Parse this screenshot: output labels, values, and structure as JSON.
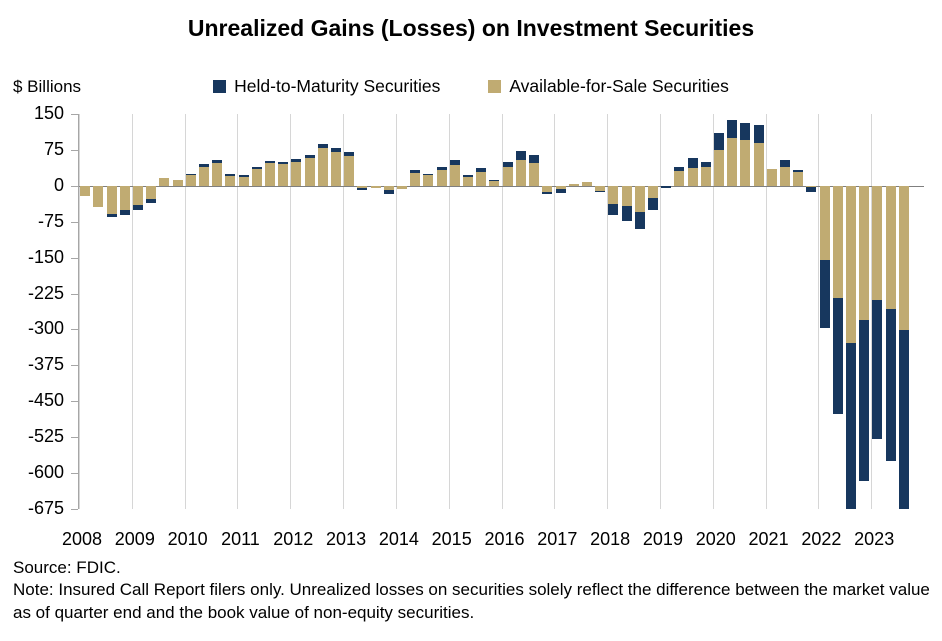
{
  "chart_data": {
    "type": "bar",
    "stacked": true,
    "title": "Unrealized Gains (Losses) on Investment Securities",
    "ylabel_unit": "$ Billions",
    "ylim": [
      -675,
      150
    ],
    "y_ticks": [
      150,
      75,
      0,
      -75,
      -150,
      -225,
      -300,
      -375,
      -450,
      -525,
      -600,
      -675
    ],
    "x_year_labels": [
      "2008",
      "2009",
      "2010",
      "2011",
      "2012",
      "2013",
      "2014",
      "2015",
      "2016",
      "2017",
      "2018",
      "2019",
      "2020",
      "2021",
      "2022",
      "2023"
    ],
    "grid": "vertical-year-lines",
    "legend_position": "top-center",
    "quarters": [
      "2008Q1",
      "2008Q2",
      "2008Q3",
      "2008Q4",
      "2009Q1",
      "2009Q2",
      "2009Q3",
      "2009Q4",
      "2010Q1",
      "2010Q2",
      "2010Q3",
      "2010Q4",
      "2011Q1",
      "2011Q2",
      "2011Q3",
      "2011Q4",
      "2012Q1",
      "2012Q2",
      "2012Q3",
      "2012Q4",
      "2013Q1",
      "2013Q2",
      "2013Q3",
      "2013Q4",
      "2014Q1",
      "2014Q2",
      "2014Q3",
      "2014Q4",
      "2015Q1",
      "2015Q2",
      "2015Q3",
      "2015Q4",
      "2016Q1",
      "2016Q2",
      "2016Q3",
      "2016Q4",
      "2017Q1",
      "2017Q2",
      "2017Q3",
      "2017Q4",
      "2018Q1",
      "2018Q2",
      "2018Q3",
      "2018Q4",
      "2019Q1",
      "2019Q2",
      "2019Q3",
      "2019Q4",
      "2020Q1",
      "2020Q2",
      "2020Q3",
      "2020Q4",
      "2021Q1",
      "2021Q2",
      "2021Q3",
      "2021Q4",
      "2022Q1",
      "2022Q2",
      "2022Q3",
      "2022Q4",
      "2023Q1",
      "2023Q2",
      "2023Q3"
    ],
    "series": [
      {
        "name": "Held-to-Maturity Securities",
        "color": "#17375E",
        "values": [
          0,
          0,
          -7,
          -12,
          -10,
          -9,
          0,
          0,
          3,
          6,
          6,
          4,
          3,
          4,
          5,
          5,
          6,
          7,
          9,
          9,
          8,
          -4,
          0,
          -8,
          0,
          5,
          3,
          7,
          10,
          4,
          9,
          2,
          10,
          19,
          17,
          -5,
          -10,
          0,
          0,
          -3,
          -24,
          -30,
          -36,
          -24,
          -5,
          10,
          21,
          10,
          37,
          38,
          37,
          38,
          0,
          13,
          3,
          -10,
          -144,
          -242,
          -361,
          -336,
          -290,
          -317,
          -383
        ]
      },
      {
        "name": "Available-for-Sale Securities",
        "color": "#C0AB72",
        "values": [
          -22,
          -45,
          -59,
          -50,
          -40,
          -27,
          16,
          12,
          22,
          39,
          47,
          21,
          19,
          36,
          47,
          45,
          50,
          58,
          79,
          70,
          62,
          -5,
          -5,
          -9,
          -6,
          27,
          22,
          33,
          43,
          19,
          28,
          11,
          40,
          54,
          48,
          -12,
          -6,
          3,
          9,
          -10,
          -38,
          -43,
          -54,
          -26,
          0,
          30,
          37,
          40,
          74,
          99,
          95,
          89,
          35,
          40,
          29,
          -2,
          -154,
          -234,
          -329,
          -280,
          -239,
          -257,
          -301
        ]
      }
    ],
    "source": "Source: FDIC.",
    "note": "Note: Insured Call Report filers only. Unrealized losses on securities solely reflect the difference between the market value as of quarter end and the book value of non-equity securities."
  }
}
